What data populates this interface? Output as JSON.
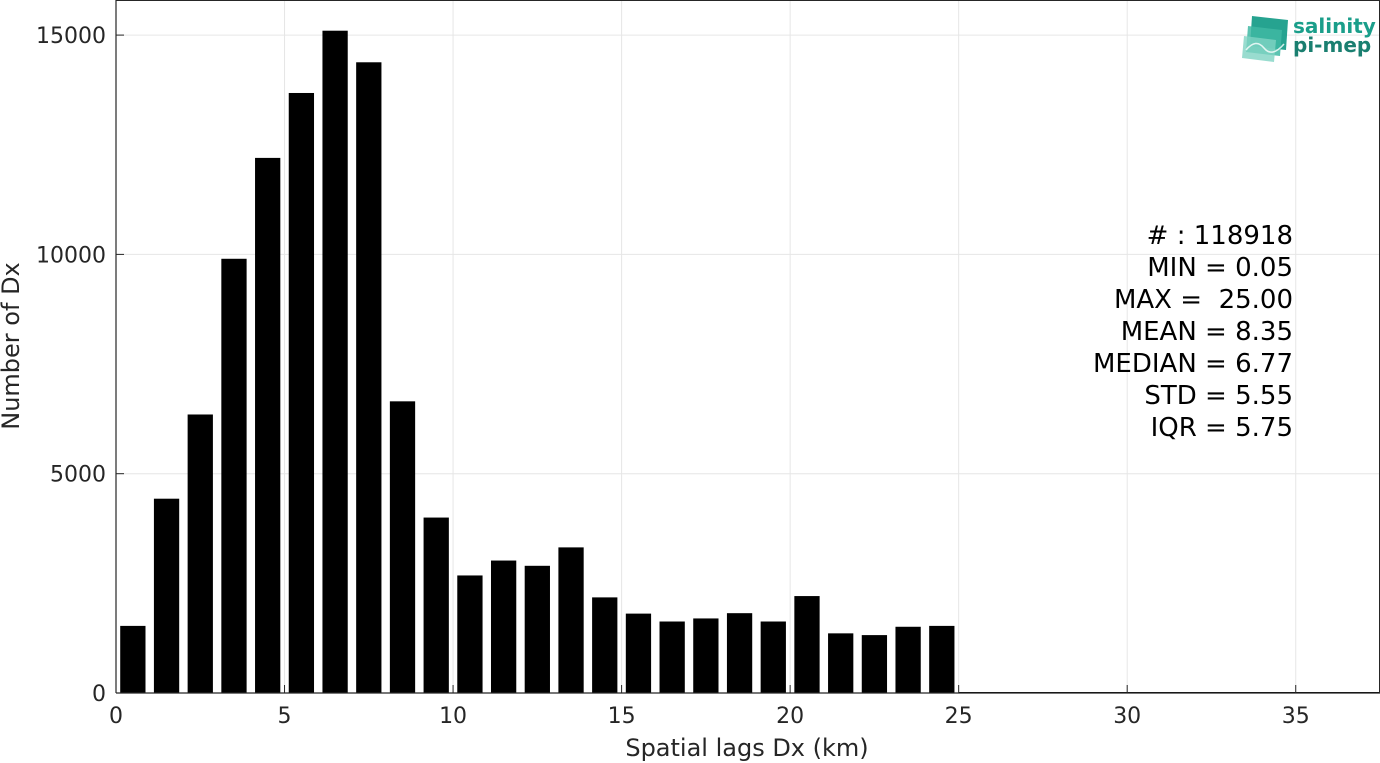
{
  "chart_data": {
    "type": "bar",
    "x": [
      0.5,
      1.5,
      2.5,
      3.5,
      4.5,
      5.5,
      6.5,
      7.5,
      8.5,
      9.5,
      10.5,
      11.5,
      12.5,
      13.5,
      14.5,
      15.5,
      16.5,
      17.5,
      18.5,
      19.5,
      20.5,
      21.5,
      22.5,
      23.5,
      24.5
    ],
    "values": [
      1530,
      4430,
      6350,
      9900,
      12200,
      13680,
      15100,
      14380,
      6650,
      4000,
      2680,
      3020,
      2900,
      3320,
      2180,
      1810,
      1630,
      1700,
      1820,
      1630,
      2210,
      1360,
      1320,
      1510,
      1530
    ],
    "xlabel": "Spatial lags Dx (km)",
    "ylabel": "Number of Dx",
    "xlim": [
      0,
      37.5
    ],
    "ylim": [
      0,
      15800
    ],
    "xticks": [
      "0",
      "5",
      "10",
      "15",
      "20",
      "25",
      "30",
      "35"
    ],
    "yticks": [
      "0",
      "5000",
      "10000",
      "15000"
    ],
    "grid": true,
    "bar_color": "#000000",
    "grid_color": "#e6e6e6"
  },
  "stats": [
    "# : 118918",
    "MIN = 0.05",
    "MAX =  25.00",
    "MEAN = 8.35",
    "MEDIAN = 6.77",
    "STD = 5.55",
    "IQR = 5.75"
  ],
  "logo": {
    "line1": "salinity",
    "line2": "pi-mep",
    "color": "#1a9e8a"
  }
}
